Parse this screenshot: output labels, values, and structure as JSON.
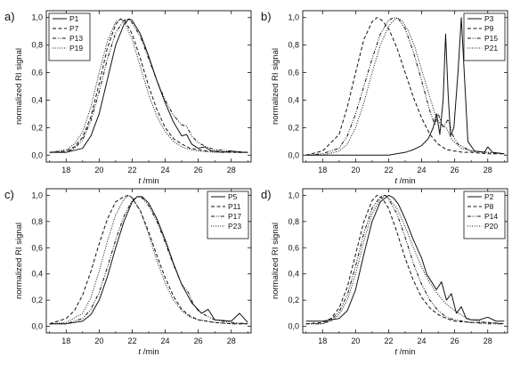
{
  "figure": {
    "background": "#ffffff",
    "ink": "#111111"
  },
  "chart_data": [
    {
      "panel": "a)",
      "type": "line",
      "xlabel_italic": "t",
      "xlabel_unit": " /min",
      "ylabel": "normalized RI signal",
      "xlim": [
        16.8,
        29.2
      ],
      "ylim": [
        -0.05,
        1.05
      ],
      "xticks": [
        18,
        20,
        22,
        24,
        26,
        28
      ],
      "yticks": [
        0.0,
        0.2,
        0.4,
        0.6,
        0.8,
        1.0
      ],
      "ytick_labels": [
        "0,0",
        "0,2",
        "0,4",
        "0,6",
        "0,8",
        "1,0"
      ],
      "legend_position": "top-left",
      "series": [
        {
          "name": "P1",
          "style": "solid",
          "x": [
            17,
            18,
            19,
            19.5,
            20,
            20.5,
            21,
            21.5,
            21.8,
            22,
            22.5,
            23,
            23.5,
            24,
            24.5,
            25,
            25.3,
            25.6,
            26,
            26.4,
            26.8,
            27.5,
            28,
            28.5,
            29
          ],
          "y": [
            0.02,
            0.02,
            0.05,
            0.14,
            0.3,
            0.55,
            0.8,
            0.95,
            0.99,
            0.98,
            0.88,
            0.72,
            0.54,
            0.38,
            0.24,
            0.14,
            0.15,
            0.08,
            0.05,
            0.06,
            0.03,
            0.02,
            0.03,
            0.02,
            0.02
          ]
        },
        {
          "name": "P7",
          "style": "dashed",
          "x": [
            17,
            18,
            18.5,
            19,
            19.5,
            20,
            20.5,
            21,
            21.3,
            21.6,
            22,
            22.5,
            23,
            23.5,
            24,
            24.5,
            25,
            25.5,
            26,
            26.5,
            27,
            28,
            29
          ],
          "y": [
            0.02,
            0.03,
            0.06,
            0.13,
            0.28,
            0.52,
            0.78,
            0.95,
            0.99,
            0.97,
            0.88,
            0.7,
            0.5,
            0.33,
            0.2,
            0.12,
            0.08,
            0.05,
            0.04,
            0.03,
            0.03,
            0.02,
            0.02
          ]
        },
        {
          "name": "P13",
          "style": "dashdotdot",
          "x": [
            17,
            18,
            18.5,
            19,
            19.5,
            20,
            20.5,
            21,
            21.5,
            21.8,
            22,
            22.5,
            23,
            23.5,
            24,
            24.5,
            25,
            25.3,
            25.6,
            26,
            26.5,
            27,
            28,
            29
          ],
          "y": [
            0.02,
            0.02,
            0.05,
            0.11,
            0.25,
            0.46,
            0.7,
            0.89,
            0.98,
            0.99,
            0.96,
            0.86,
            0.7,
            0.54,
            0.4,
            0.29,
            0.22,
            0.21,
            0.14,
            0.09,
            0.06,
            0.04,
            0.03,
            0.02
          ]
        },
        {
          "name": "P19",
          "style": "dotted",
          "x": [
            17,
            18,
            18.5,
            19,
            19.5,
            20,
            20.5,
            21,
            21.3,
            21.6,
            22,
            22.5,
            23,
            23.5,
            24,
            24.5,
            25,
            25.5,
            26,
            27,
            28,
            29
          ],
          "y": [
            0.02,
            0.04,
            0.08,
            0.17,
            0.35,
            0.6,
            0.83,
            0.97,
            0.99,
            0.95,
            0.84,
            0.64,
            0.44,
            0.28,
            0.17,
            0.1,
            0.06,
            0.04,
            0.03,
            0.02,
            0.02,
            0.02
          ]
        }
      ]
    },
    {
      "panel": "b)",
      "type": "line",
      "xlabel_italic": "t",
      "xlabel_unit": " /min",
      "ylabel": "normalized RI signal",
      "xlim": [
        16.8,
        29.2
      ],
      "ylim": [
        -0.05,
        1.05
      ],
      "xticks": [
        18,
        20,
        22,
        24,
        26,
        28
      ],
      "yticks": [
        0.0,
        0.2,
        0.4,
        0.6,
        0.8,
        1.0
      ],
      "ytick_labels": [
        "0,0",
        "0,2",
        "0,4",
        "0,6",
        "0,8",
        "1,0"
      ],
      "legend_position": "top-right",
      "series": [
        {
          "name": "P3",
          "style": "solid",
          "x": [
            17,
            20,
            22,
            23,
            23.5,
            24,
            24.4,
            24.7,
            24.9,
            25.1,
            25.3,
            25.45,
            25.6,
            25.75,
            25.95,
            26.2,
            26.4,
            26.6,
            26.8,
            27.2,
            27.8,
            28,
            28.3,
            29
          ],
          "y": [
            0.0,
            0.0,
            0.0,
            0.02,
            0.04,
            0.07,
            0.12,
            0.2,
            0.3,
            0.15,
            0.4,
            0.88,
            0.45,
            0.14,
            0.2,
            0.6,
            1.0,
            0.55,
            0.1,
            0.03,
            0.02,
            0.06,
            0.02,
            0.01
          ]
        },
        {
          "name": "P9",
          "style": "dashed",
          "x": [
            17,
            18,
            19,
            19.5,
            20,
            20.5,
            21,
            21.3,
            21.6,
            22,
            22.5,
            23,
            23.5,
            24,
            24.5,
            25,
            25.5,
            26,
            26.5,
            27,
            28,
            29
          ],
          "y": [
            0.0,
            0.03,
            0.15,
            0.35,
            0.6,
            0.84,
            0.97,
            1.0,
            0.98,
            0.92,
            0.78,
            0.6,
            0.42,
            0.27,
            0.15,
            0.08,
            0.04,
            0.03,
            0.02,
            0.02,
            0.01,
            0.01
          ]
        },
        {
          "name": "P15",
          "style": "dashdotdot",
          "x": [
            17,
            18,
            19,
            19.5,
            20,
            20.5,
            21,
            21.5,
            22,
            22.3,
            22.6,
            23,
            23.5,
            24,
            24.5,
            24.8,
            25,
            25.3,
            25.6,
            25.9,
            26.2,
            26.5,
            27,
            28,
            29
          ],
          "y": [
            0.0,
            0.01,
            0.05,
            0.14,
            0.3,
            0.5,
            0.7,
            0.88,
            0.98,
            1.0,
            0.99,
            0.92,
            0.75,
            0.54,
            0.32,
            0.22,
            0.3,
            0.2,
            0.26,
            0.14,
            0.08,
            0.06,
            0.03,
            0.02,
            0.01
          ]
        },
        {
          "name": "P21",
          "style": "dotted",
          "x": [
            17,
            18,
            19,
            19.5,
            20,
            20.5,
            21,
            21.5,
            22,
            22.5,
            22.8,
            23.2,
            23.6,
            24,
            24.5,
            24.8,
            25,
            25.2,
            25.5,
            25.8,
            26.1,
            26.4,
            27,
            28,
            29
          ],
          "y": [
            0.0,
            0.0,
            0.03,
            0.08,
            0.2,
            0.38,
            0.6,
            0.8,
            0.94,
            1.0,
            0.98,
            0.9,
            0.78,
            0.62,
            0.42,
            0.3,
            0.25,
            0.22,
            0.2,
            0.12,
            0.08,
            0.05,
            0.03,
            0.02,
            0.01
          ]
        }
      ]
    },
    {
      "panel": "c)",
      "type": "line",
      "xlabel_italic": "t",
      "xlabel_unit": " /min",
      "ylabel": "normalized RI signal",
      "xlim": [
        16.8,
        29.2
      ],
      "ylim": [
        -0.05,
        1.05
      ],
      "xticks": [
        18,
        20,
        22,
        24,
        26,
        28
      ],
      "yticks": [
        0.0,
        0.2,
        0.4,
        0.6,
        0.8,
        1.0
      ],
      "ytick_labels": [
        "0,0",
        "0,2",
        "0,4",
        "0,6",
        "0,8",
        "1,0"
      ],
      "legend_position": "top-right",
      "series": [
        {
          "name": "P5",
          "style": "solid",
          "x": [
            17,
            18,
            19,
            19.5,
            20,
            20.5,
            21,
            21.5,
            22,
            22.3,
            22.6,
            23,
            23.5,
            24,
            24.5,
            25,
            25.3,
            25.6,
            25.9,
            26.2,
            26.6,
            27,
            28,
            28.5,
            29
          ],
          "y": [
            0.02,
            0.02,
            0.04,
            0.09,
            0.2,
            0.38,
            0.6,
            0.8,
            0.95,
            0.99,
            0.99,
            0.94,
            0.82,
            0.66,
            0.48,
            0.32,
            0.25,
            0.18,
            0.14,
            0.1,
            0.13,
            0.05,
            0.04,
            0.1,
            0.03
          ]
        },
        {
          "name": "P11",
          "style": "dashed",
          "x": [
            17,
            18,
            18.5,
            19,
            19.5,
            20,
            20.5,
            21,
            21.5,
            21.8,
            22,
            22.5,
            23,
            23.5,
            24,
            24.5,
            25,
            25.5,
            26,
            27,
            28,
            29
          ],
          "y": [
            0.02,
            0.06,
            0.12,
            0.24,
            0.42,
            0.63,
            0.82,
            0.95,
            0.99,
            1.0,
            0.98,
            0.88,
            0.72,
            0.54,
            0.37,
            0.23,
            0.13,
            0.08,
            0.05,
            0.03,
            0.02,
            0.02
          ]
        },
        {
          "name": "P17",
          "style": "dashdotdot",
          "x": [
            17,
            18,
            19,
            19.5,
            20,
            20.5,
            21,
            21.5,
            22,
            22.3,
            22.6,
            23,
            23.5,
            24,
            24.5,
            25,
            25.4,
            25.7,
            26,
            26.5,
            27,
            28,
            29
          ],
          "y": [
            0.02,
            0.02,
            0.06,
            0.13,
            0.26,
            0.45,
            0.66,
            0.84,
            0.96,
            0.99,
            0.98,
            0.92,
            0.8,
            0.64,
            0.47,
            0.32,
            0.26,
            0.17,
            0.12,
            0.08,
            0.05,
            0.03,
            0.02
          ]
        },
        {
          "name": "P23",
          "style": "dotted",
          "x": [
            17,
            18,
            19,
            19.5,
            20,
            20.5,
            21,
            21.5,
            21.8,
            22,
            22.5,
            23,
            23.5,
            24,
            24.5,
            25,
            25.5,
            26,
            27,
            28,
            29
          ],
          "y": [
            0.02,
            0.03,
            0.1,
            0.22,
            0.42,
            0.65,
            0.85,
            0.97,
            1.0,
            0.98,
            0.88,
            0.7,
            0.5,
            0.33,
            0.2,
            0.12,
            0.07,
            0.05,
            0.03,
            0.02,
            0.02
          ]
        }
      ]
    },
    {
      "panel": "d)",
      "type": "line",
      "xlabel_italic": "t",
      "xlabel_unit": " /min",
      "ylabel": "normalized RI signal",
      "xlim": [
        16.8,
        29.2
      ],
      "ylim": [
        -0.05,
        1.05
      ],
      "xticks": [
        18,
        20,
        22,
        24,
        26,
        28
      ],
      "yticks": [
        0.0,
        0.2,
        0.4,
        0.6,
        0.8,
        1.0
      ],
      "ytick_labels": [
        "0,0",
        "0,2",
        "0,4",
        "0,6",
        "0,8",
        "1,0"
      ],
      "legend_position": "top-right",
      "series": [
        {
          "name": "P2",
          "style": "solid",
          "x": [
            17,
            18,
            19,
            19.5,
            20,
            20.5,
            21,
            21.5,
            22,
            22.3,
            22.6,
            23,
            23.5,
            24,
            24.3,
            24.6,
            24.9,
            25.2,
            25.5,
            25.8,
            26.1,
            26.4,
            26.7,
            27,
            27.5,
            28,
            28.5,
            29
          ],
          "y": [
            0.04,
            0.04,
            0.06,
            0.12,
            0.28,
            0.55,
            0.8,
            0.95,
            1.0,
            0.98,
            0.93,
            0.82,
            0.66,
            0.52,
            0.4,
            0.34,
            0.28,
            0.34,
            0.2,
            0.25,
            0.1,
            0.15,
            0.06,
            0.05,
            0.05,
            0.07,
            0.04,
            0.04
          ]
        },
        {
          "name": "P8",
          "style": "dashed",
          "x": [
            17,
            18,
            18.5,
            19,
            19.5,
            20,
            20.5,
            21,
            21.3,
            21.6,
            22,
            22.5,
            23,
            23.5,
            24,
            24.5,
            25,
            25.5,
            26,
            27,
            28,
            29
          ],
          "y": [
            0.02,
            0.03,
            0.06,
            0.14,
            0.3,
            0.55,
            0.8,
            0.96,
            1.0,
            0.98,
            0.9,
            0.72,
            0.52,
            0.35,
            0.22,
            0.14,
            0.09,
            0.06,
            0.04,
            0.03,
            0.03,
            0.02
          ]
        },
        {
          "name": "P14",
          "style": "dashdotdot",
          "x": [
            17,
            18,
            18.5,
            19,
            19.5,
            20,
            20.5,
            21,
            21.5,
            21.8,
            22,
            22.5,
            23,
            23.5,
            24,
            24.5,
            25,
            25.5,
            26,
            27,
            28,
            29
          ],
          "y": [
            0.02,
            0.02,
            0.05,
            0.11,
            0.24,
            0.46,
            0.71,
            0.9,
            0.99,
            1.0,
            0.97,
            0.86,
            0.68,
            0.48,
            0.32,
            0.2,
            0.12,
            0.07,
            0.05,
            0.03,
            0.02,
            0.02
          ]
        },
        {
          "name": "P20",
          "style": "dotted",
          "x": [
            17,
            18,
            18.5,
            19,
            19.5,
            20,
            20.5,
            21,
            21.5,
            21.8,
            22,
            22.5,
            23,
            23.5,
            24,
            24.5,
            25,
            25.5,
            26,
            26.5,
            27,
            28,
            29
          ],
          "y": [
            0.02,
            0.02,
            0.04,
            0.09,
            0.2,
            0.4,
            0.65,
            0.86,
            0.97,
            1.0,
            0.98,
            0.9,
            0.76,
            0.6,
            0.45,
            0.33,
            0.24,
            0.17,
            0.12,
            0.08,
            0.05,
            0.03,
            0.02
          ]
        }
      ]
    }
  ]
}
